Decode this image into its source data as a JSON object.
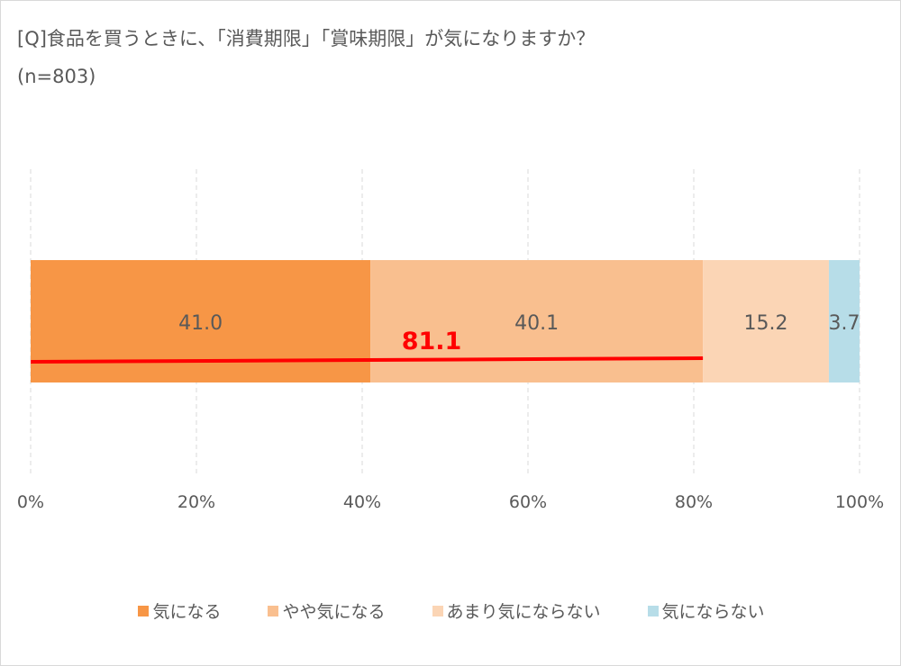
{
  "title": "[Q]食品を買うときに、「消費期限」「賞味期限」が気になりますか？",
  "subtitle": "(n=803)",
  "chart_data": {
    "type": "bar",
    "orientation": "horizontal-stacked-100",
    "series": [
      {
        "name": "気になる",
        "values": [
          41.0
        ],
        "color": "#F79646"
      },
      {
        "name": "やや気になる",
        "values": [
          40.1
        ],
        "color": "#F9BF8F"
      },
      {
        "name": "あまり気にならない",
        "values": [
          15.2
        ],
        "color": "#FBD5B5"
      },
      {
        "name": "気にならない",
        "values": [
          3.7
        ],
        "color": "#B7DDE8"
      }
    ],
    "data_labels": [
      "41.0",
      "40.1",
      "15.2",
      "3.7"
    ],
    "annotation": {
      "text": "81.1",
      "color": "#FF0000",
      "from": 0,
      "to": 81.1
    },
    "xlim": [
      0,
      100
    ],
    "xticks": [
      "0%",
      "20%",
      "40%",
      "60%",
      "80%",
      "100%"
    ],
    "grid": true,
    "legend_position": "bottom"
  }
}
